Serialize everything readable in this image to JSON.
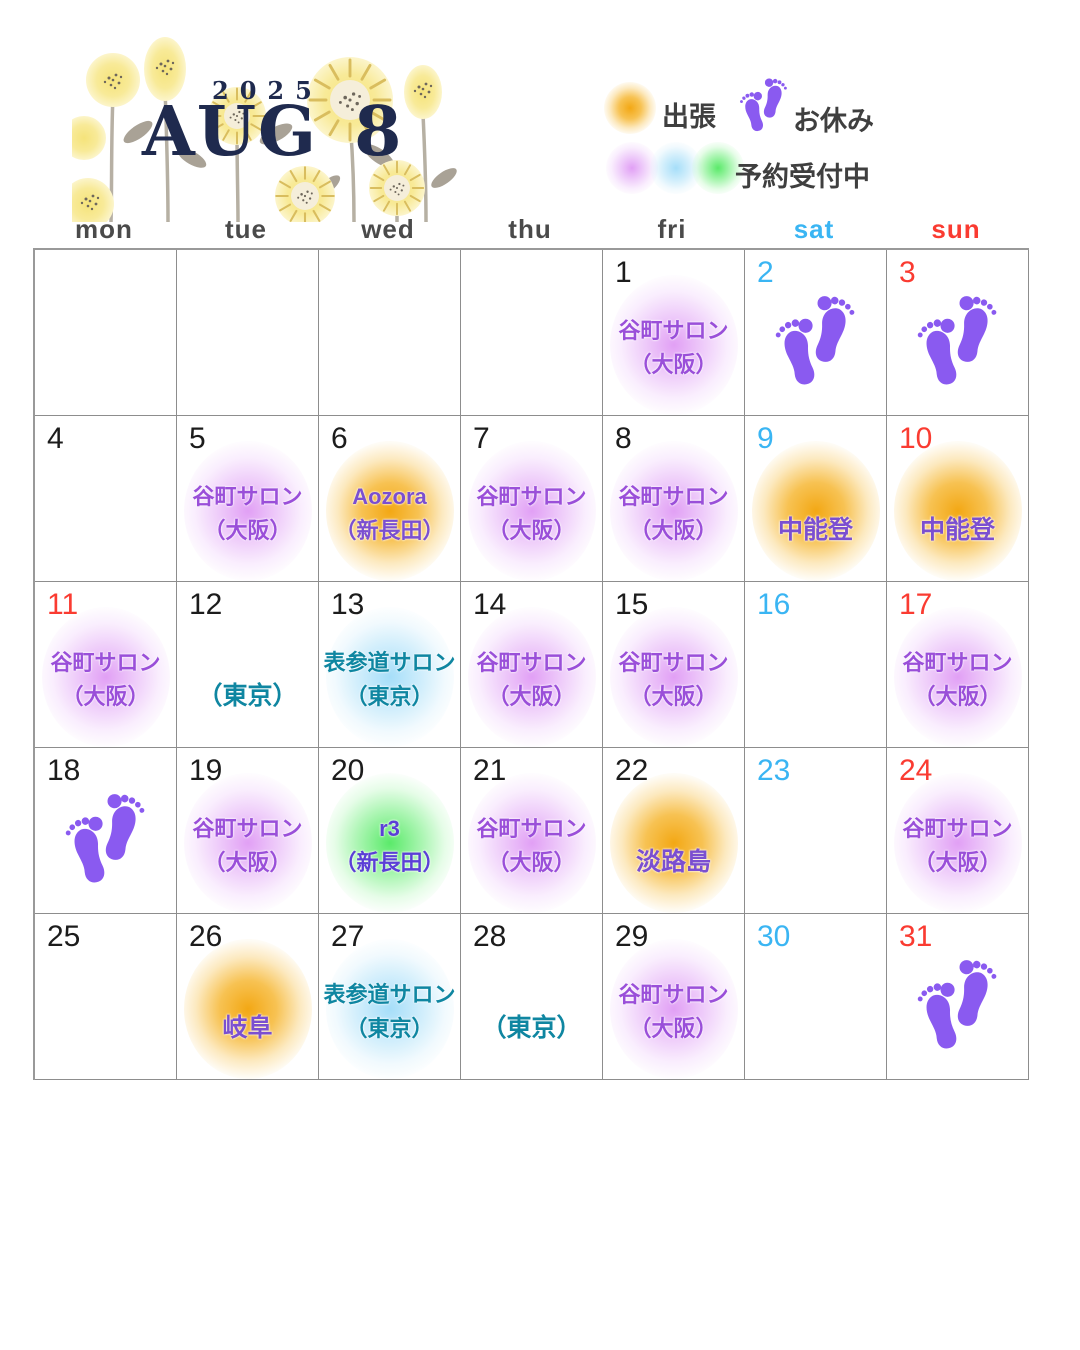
{
  "header": {
    "year": "2025",
    "month_abbr": "AUG",
    "month_num": "8"
  },
  "legend": {
    "trip_label": "出張",
    "dayoff_label": "お休み",
    "reservation_label": "予約受付中"
  },
  "colors": {
    "title_navy": "#1f2a4e",
    "saturday_blue": "#3ab5f3",
    "sunday_red": "#fa3b31",
    "footprint_purple": "#8a5af0",
    "blob_orange": "#f2a308",
    "blob_purple": "#cd60ee",
    "blob_blue": "#80d0f6",
    "blob_green": "#3ee650",
    "text_purple": "#9a4fd9",
    "text_purple_deep": "#7b4fd0",
    "text_teal": "#0f86a1",
    "text_indigo": "#5b3fd6"
  },
  "weekdays": [
    {
      "label": "mon",
      "style": "default"
    },
    {
      "label": "tue",
      "style": "default"
    },
    {
      "label": "wed",
      "style": "default"
    },
    {
      "label": "thu",
      "style": "default"
    },
    {
      "label": "fri",
      "style": "default"
    },
    {
      "label": "sat",
      "style": "sat"
    },
    {
      "label": "sun",
      "style": "sun"
    }
  ],
  "calendar": {
    "cells": [
      {
        "day": ""
      },
      {
        "day": ""
      },
      {
        "day": ""
      },
      {
        "day": ""
      },
      {
        "day": "1",
        "num": "default",
        "blob": "purple",
        "lines": [
          "谷町サロン",
          "（大阪）"
        ],
        "tc": "purple"
      },
      {
        "day": "2",
        "num": "sat",
        "footprints": true
      },
      {
        "day": "3",
        "num": "sun",
        "footprints": true
      },
      {
        "day": "4",
        "num": "default"
      },
      {
        "day": "5",
        "num": "default",
        "blob": "purple",
        "lines": [
          "谷町サロン",
          "（大阪）"
        ],
        "tc": "purple"
      },
      {
        "day": "6",
        "num": "default",
        "blob": "orange",
        "lines": [
          "Aozora",
          "（新長田）"
        ],
        "tc": "purple-deep"
      },
      {
        "day": "7",
        "num": "default",
        "blob": "purple",
        "lines": [
          "谷町サロン",
          "（大阪）"
        ],
        "tc": "purple"
      },
      {
        "day": "8",
        "num": "default",
        "blob": "purple",
        "lines": [
          "谷町サロン",
          "（大阪）"
        ],
        "tc": "purple"
      },
      {
        "day": "9",
        "num": "sat",
        "blob": "orange",
        "lines": [
          "中能登"
        ],
        "tc": "purple-deep"
      },
      {
        "day": "10",
        "num": "sun",
        "blob": "orange",
        "lines": [
          "中能登"
        ],
        "tc": "purple-deep"
      },
      {
        "day": "11",
        "num": "sun",
        "blob": "purple",
        "lines": [
          "谷町サロン",
          "（大阪）"
        ],
        "tc": "purple"
      },
      {
        "day": "12",
        "num": "default",
        "lines": [
          "（東京）"
        ],
        "tc": "teal"
      },
      {
        "day": "13",
        "num": "default",
        "blob": "blue",
        "lines": [
          "表参道サロン",
          "（東京）"
        ],
        "tc": "teal"
      },
      {
        "day": "14",
        "num": "default",
        "blob": "purple",
        "lines": [
          "谷町サロン",
          "（大阪）"
        ],
        "tc": "purple"
      },
      {
        "day": "15",
        "num": "default",
        "blob": "purple",
        "lines": [
          "谷町サロン",
          "（大阪）"
        ],
        "tc": "purple"
      },
      {
        "day": "16",
        "num": "sat"
      },
      {
        "day": "17",
        "num": "sun",
        "blob": "purple",
        "lines": [
          "谷町サロン",
          "（大阪）"
        ],
        "tc": "purple"
      },
      {
        "day": "18",
        "num": "default",
        "footprints": true
      },
      {
        "day": "19",
        "num": "default",
        "blob": "purple",
        "lines": [
          "谷町サロン",
          "（大阪）"
        ],
        "tc": "purple"
      },
      {
        "day": "20",
        "num": "default",
        "blob": "green",
        "lines": [
          "r3",
          "（新長田）"
        ],
        "tc": "indigo"
      },
      {
        "day": "21",
        "num": "default",
        "blob": "purple",
        "lines": [
          "谷町サロン",
          "（大阪）"
        ],
        "tc": "purple"
      },
      {
        "day": "22",
        "num": "default",
        "blob": "orange",
        "lines": [
          "淡路島"
        ],
        "tc": "purple-deep"
      },
      {
        "day": "23",
        "num": "sat"
      },
      {
        "day": "24",
        "num": "sun",
        "blob": "purple",
        "lines": [
          "谷町サロン",
          "（大阪）"
        ],
        "tc": "purple"
      },
      {
        "day": "25",
        "num": "default"
      },
      {
        "day": "26",
        "num": "default",
        "blob": "orange",
        "lines": [
          "岐阜"
        ],
        "tc": "purple-deep"
      },
      {
        "day": "27",
        "num": "default",
        "blob": "blue",
        "lines": [
          "表参道サロン",
          "（東京）"
        ],
        "tc": "teal"
      },
      {
        "day": "28",
        "num": "default",
        "lines": [
          "（東京）"
        ],
        "tc": "teal"
      },
      {
        "day": "29",
        "num": "default",
        "blob": "purple",
        "lines": [
          "谷町サロン",
          "（大阪）"
        ],
        "tc": "purple"
      },
      {
        "day": "30",
        "num": "sat"
      },
      {
        "day": "31",
        "num": "sun",
        "footprints": true
      }
    ]
  }
}
